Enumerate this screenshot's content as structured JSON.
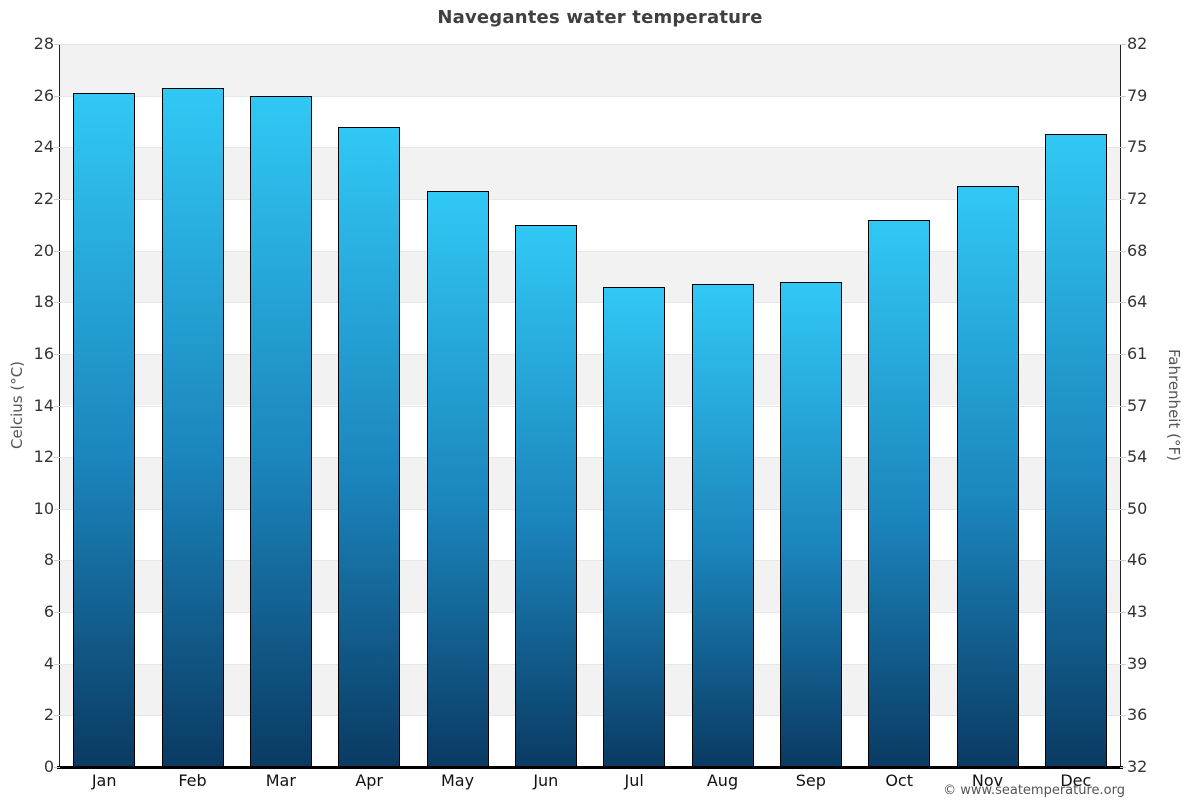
{
  "chart_data": {
    "type": "bar",
    "title": "Navegantes water temperature",
    "categories": [
      "Jan",
      "Feb",
      "Mar",
      "Apr",
      "May",
      "Jun",
      "Jul",
      "Aug",
      "Sep",
      "Oct",
      "Nov",
      "Dec"
    ],
    "values": [
      26.1,
      26.3,
      26.0,
      24.8,
      22.3,
      21.0,
      18.6,
      18.7,
      18.8,
      21.2,
      22.5,
      24.5
    ],
    "xlabel": "",
    "ylabel_left": "Celcius (°C)",
    "ylabel_right": "Fahrenheit (°F)",
    "ylim": [
      0,
      28
    ],
    "ytick_step": 2,
    "yticks_left": [
      "28",
      "26",
      "24",
      "22",
      "20",
      "18",
      "16",
      "14",
      "12",
      "10",
      "8",
      "6",
      "4",
      "2",
      "0"
    ],
    "yticks_right": [
      "82",
      "79",
      "75",
      "72",
      "68",
      "64",
      "61",
      "57",
      "54",
      "50",
      "46",
      "43",
      "39",
      "36",
      "32"
    ],
    "grid": "horizontal-banded",
    "legend": "none"
  },
  "footer": {
    "copyright": "© www.seatemperature.org"
  },
  "colors": {
    "bar_gradient_top": "#31c8f5",
    "bar_gradient_bottom": "#0a3a62",
    "bar_border": "#000000",
    "band_gray": "#f2f2f2",
    "gridline": "#e6e6e6",
    "y_axis_line": "#222222",
    "x_axis_line": "#000000",
    "title_text": "#404040",
    "tick_text": "#333333",
    "axis_title_text": "#555555",
    "copyright_text": "#555555"
  }
}
